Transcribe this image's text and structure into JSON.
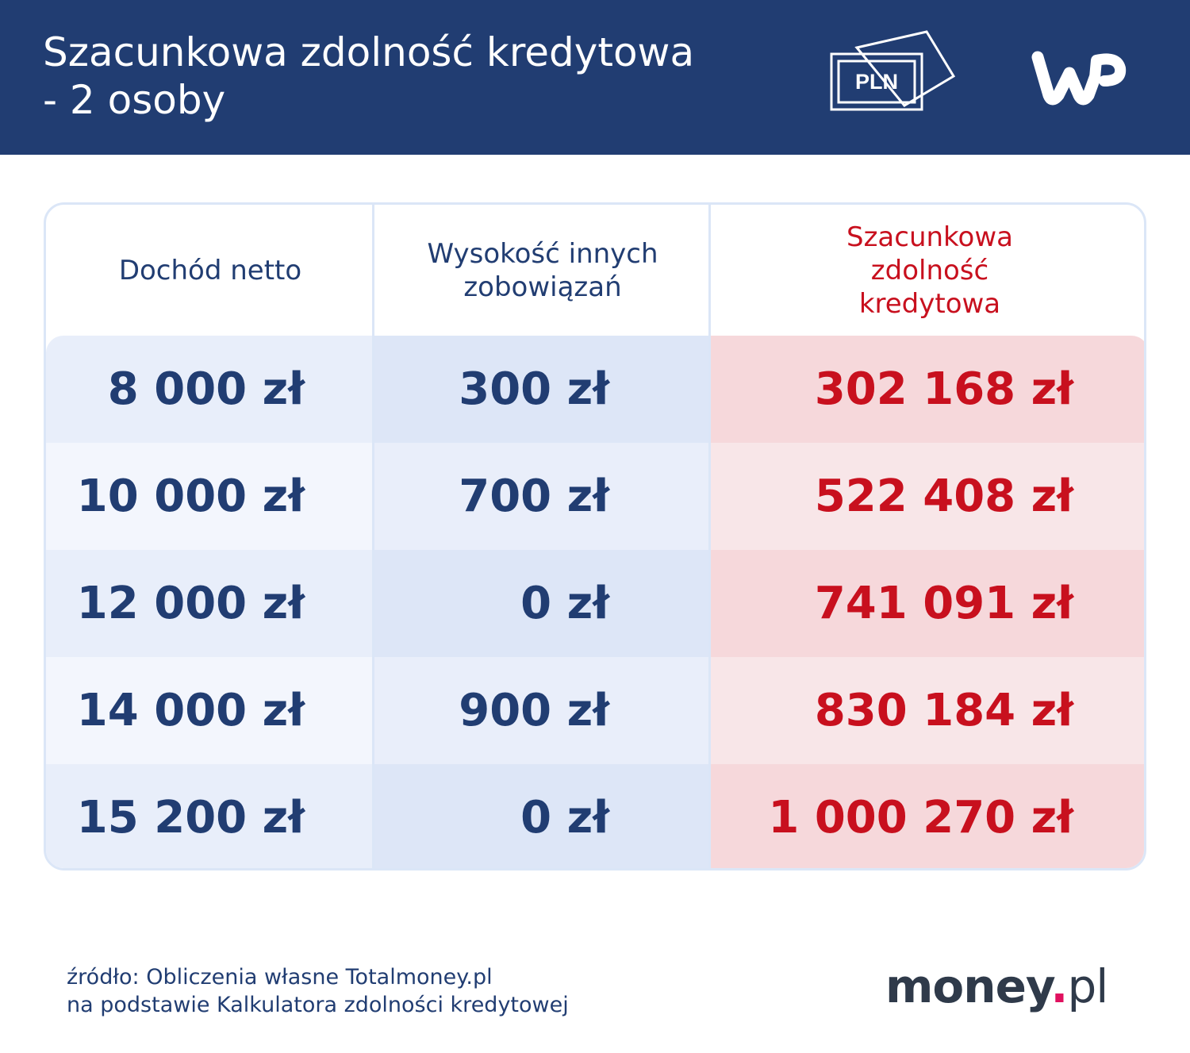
{
  "header": {
    "title_line1": "Szacunkowa zdolność kredytowa",
    "title_line2": "- 2 osoby",
    "pln_icon_label": "PLN",
    "logo": "WP"
  },
  "table": {
    "columns": [
      "Dochód netto",
      "Wysokość innych zobowiązań",
      "Szacunkowa zdolność kredytowa"
    ],
    "rows": [
      [
        "8 000 zł",
        "300 zł",
        "302 168 zł"
      ],
      [
        "10 000 zł",
        "700 zł",
        "522 408 zł"
      ],
      [
        "12 000 zł",
        "0 zł",
        "741 091 zł"
      ],
      [
        "14 000 zł",
        "900 zł",
        "830 184 zł"
      ],
      [
        "15 200 zł",
        "0 zł",
        "1 000 270 zł"
      ]
    ]
  },
  "footer": {
    "source_line1": "źródło: Obliczenia własne Totalmoney.pl",
    "source_line2": "na podstawie Kalkulatora zdolności kredytowej",
    "brand_name": "money",
    "brand_dot": ".",
    "brand_tld": "pl"
  },
  "colors": {
    "header_bg": "#213d72",
    "accent_red": "#c8101e",
    "brand_dot": "#e0115f"
  }
}
